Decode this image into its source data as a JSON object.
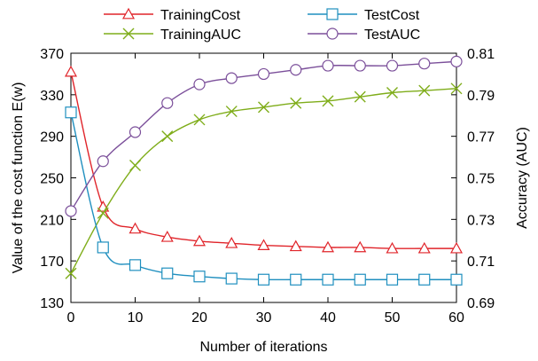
{
  "chart_data": {
    "type": "line",
    "xlabel": "Number of iterations",
    "ylabel_left": "Value of the cost function E(w)",
    "ylabel_right": "Accuracy (AUC)",
    "x_ticks": [
      0,
      10,
      20,
      30,
      40,
      50,
      60
    ],
    "y_left_ticks": [
      130,
      170,
      210,
      250,
      290,
      330,
      370
    ],
    "y_right_ticks": [
      "0.69",
      "0.71",
      "0.73",
      "0.75",
      "0.77",
      "0.79",
      "0.81"
    ],
    "xlim": [
      0,
      60
    ],
    "ylim_left": [
      130,
      370
    ],
    "ylim_right": [
      0.69,
      0.81
    ],
    "grid": false,
    "legend_position": "top",
    "series": [
      {
        "name": "TrainingCost",
        "axis": "left",
        "color": "#e0242a",
        "marker": "triangle",
        "x": [
          0,
          5,
          10,
          15,
          20,
          25,
          30,
          35,
          40,
          45,
          50,
          55,
          60
        ],
        "values": [
          352,
          222,
          201,
          193,
          189,
          187,
          185,
          184,
          183,
          183,
          182,
          182,
          182
        ]
      },
      {
        "name": "TrainingAUC",
        "axis": "right",
        "color": "#7fad1a",
        "marker": "x",
        "x": [
          0,
          5,
          10,
          15,
          20,
          25,
          30,
          35,
          40,
          45,
          50,
          55,
          60
        ],
        "values": [
          0.704,
          0.733,
          0.756,
          0.77,
          0.778,
          0.782,
          0.784,
          0.786,
          0.787,
          0.789,
          0.791,
          0.792,
          0.793
        ]
      },
      {
        "name": "TestCost",
        "axis": "left",
        "color": "#1f8fbf",
        "marker": "square",
        "x": [
          0,
          5,
          10,
          15,
          20,
          25,
          30,
          35,
          40,
          45,
          50,
          55,
          60
        ],
        "values": [
          313,
          183,
          166,
          158,
          155,
          153,
          152,
          152,
          152,
          152,
          152,
          152,
          152
        ]
      },
      {
        "name": "TestAUC",
        "axis": "right",
        "color": "#7b4f9a",
        "marker": "circle",
        "x": [
          0,
          5,
          10,
          15,
          20,
          25,
          30,
          35,
          40,
          45,
          50,
          55,
          60
        ],
        "values": [
          0.734,
          0.758,
          0.772,
          0.786,
          0.795,
          0.798,
          0.8,
          0.802,
          0.804,
          0.804,
          0.804,
          0.805,
          0.806
        ]
      }
    ]
  }
}
